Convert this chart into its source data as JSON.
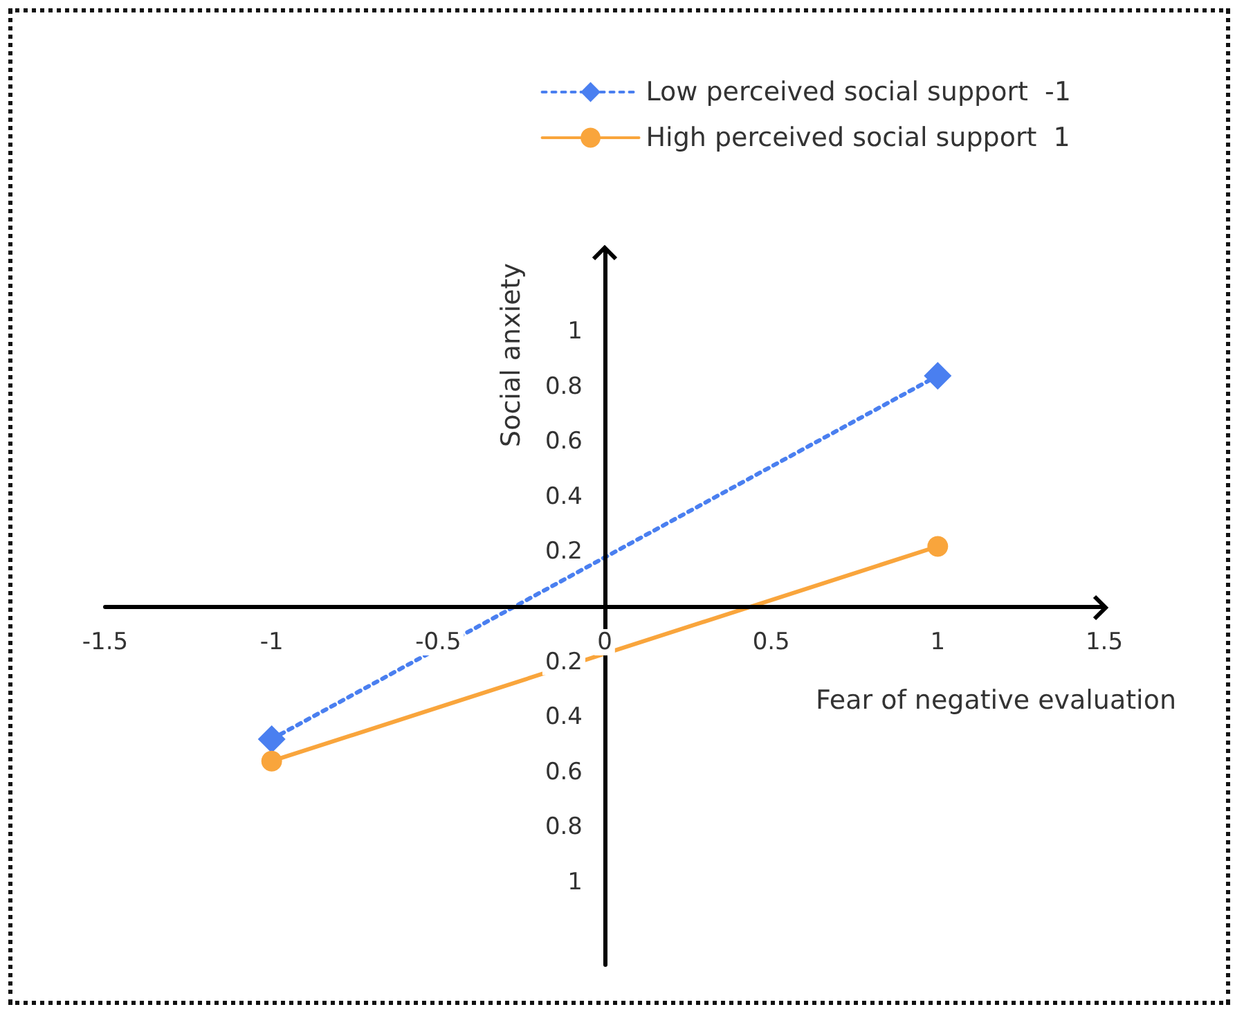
{
  "chart_data": {
    "type": "line",
    "xlabel": "Fear of negative evaluation",
    "ylabel": "Social anxiety",
    "x": [
      -1,
      1
    ],
    "series": [
      {
        "name": "Low perceived social support  -1",
        "color": "#4a7ff0",
        "values": [
          -0.48,
          0.84
        ],
        "marker": "diamond",
        "line_style": "dotted"
      },
      {
        "name": "High perceived social support  1",
        "color": "#f9a53c",
        "values": [
          -0.56,
          0.22
        ],
        "marker": "circle",
        "line_style": "solid"
      }
    ],
    "xlim": [
      -1.5,
      1.5
    ],
    "xticks": [
      -1.5,
      -1,
      -0.5,
      0,
      0.5,
      1,
      1.5
    ],
    "ylim": [
      -1.3,
      1.3
    ],
    "yticks": [
      1,
      0.8,
      0.6,
      0.4,
      0.2,
      {
        "value": -0.2,
        "label": "0.2"
      },
      {
        "value": -0.4,
        "label": "0.4"
      },
      {
        "value": -0.6,
        "label": "0.6"
      },
      {
        "value": -0.8,
        "label": "0.8"
      },
      {
        "value": -1,
        "label": "1"
      }
    ],
    "grid": false,
    "legend": "top right"
  }
}
